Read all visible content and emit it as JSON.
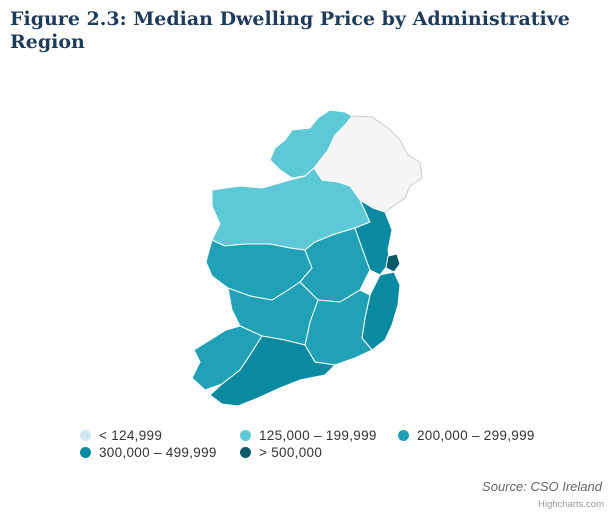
{
  "title": "Figure 2.3: Median Dwelling Price by Administrative Region",
  "colors": {
    "lt125": "#cfe9ee",
    "r125_199": "#5dc8d6",
    "r200_299": "#20a1b5",
    "r300_499": "#0a8aa0",
    "gt500": "#0a5a67",
    "no_data": "#f5f5f5",
    "border": "#ffffff"
  },
  "legend": [
    {
      "label": "< 124,999",
      "color": "#cfe9ee"
    },
    {
      "label": "125,000 – 199,999",
      "color": "#5dc8d6"
    },
    {
      "label": "200,000 – 299,999",
      "color": "#20a1b5"
    },
    {
      "label": "300,000 – 499,999",
      "color": "#0a8aa0"
    },
    {
      "label": "> 500,000",
      "color": "#0a5a67"
    }
  ],
  "source": "Source: CSO Ireland",
  "credits": "Highcharts.com"
}
